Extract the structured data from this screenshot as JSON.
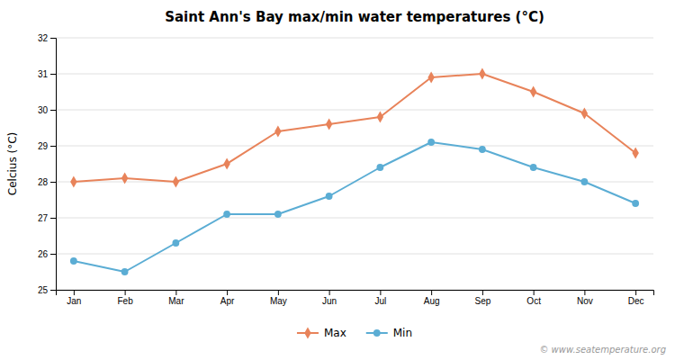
{
  "chart_data": {
    "type": "line",
    "title": "Saint Ann's Bay max/min water temperatures (°C)",
    "ylabel": "Celcius (°C)",
    "categories": [
      "Jan",
      "Feb",
      "Mar",
      "Apr",
      "May",
      "Jun",
      "Jul",
      "Aug",
      "Sep",
      "Oct",
      "Nov",
      "Dec"
    ],
    "series": [
      {
        "name": "Max",
        "color": "#e8835a",
        "marker": "diamond",
        "values": [
          28.0,
          28.1,
          28.0,
          28.5,
          29.4,
          29.6,
          29.8,
          30.9,
          31.0,
          30.5,
          29.9,
          28.8
        ]
      },
      {
        "name": "Min",
        "color": "#5badd4",
        "marker": "circle",
        "values": [
          25.8,
          25.5,
          26.3,
          27.1,
          27.1,
          27.6,
          28.4,
          29.1,
          28.9,
          28.4,
          28.0,
          27.4
        ]
      }
    ],
    "ylim": [
      25,
      32
    ],
    "yticks": [
      25,
      26,
      27,
      28,
      29,
      30,
      31,
      32
    ],
    "grid": true,
    "legend": "bottom",
    "annotations": [
      "© www.seatemperature.org"
    ]
  }
}
